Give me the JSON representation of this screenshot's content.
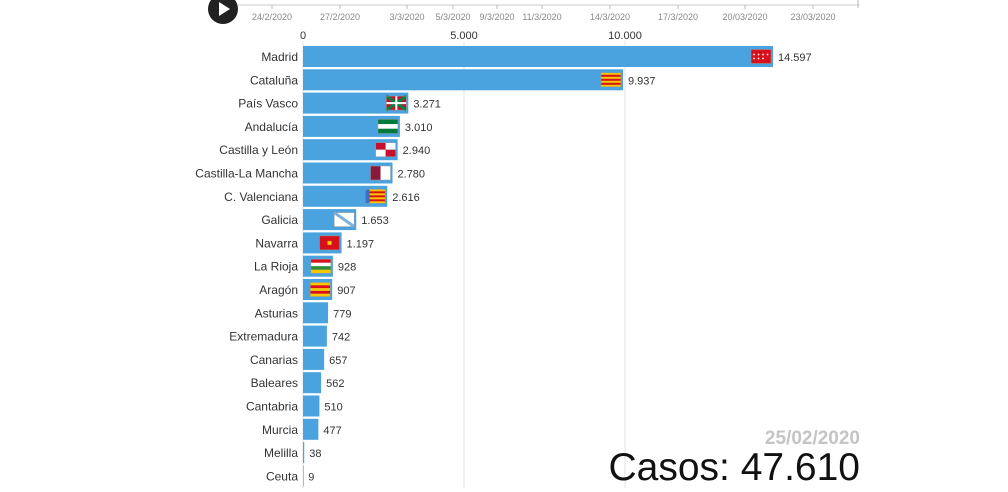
{
  "timeline": {
    "labels": [
      "24/2/2020",
      "27/2/2020",
      "3/3/2020",
      "5/3/2020",
      "9/3/2020",
      "11/3/2020",
      "14/3/2020",
      "17/3/2020",
      "20/03/2020",
      "23/03/2020"
    ]
  },
  "colors": {
    "bar": "#4aa3df",
    "grid": "#e3e3e3",
    "axis": "#bbbbbb"
  },
  "chart_data": {
    "type": "bar",
    "orientation": "horizontal",
    "xlim": [
      0,
      15500
    ],
    "x_ticks": [
      0,
      5000,
      10000
    ],
    "x_tick_labels": [
      "0",
      "5.000",
      "10.000"
    ],
    "categories": [
      "Madrid",
      "Cataluña",
      "País Vasco",
      "Andalucía",
      "Castilla y León",
      "Castilla-La Mancha",
      "C. Valenciana",
      "Galicia",
      "Navarra",
      "La Rioja",
      "Aragón",
      "Asturias",
      "Extremadura",
      "Canarias",
      "Baleares",
      "Cantabria",
      "Murcia",
      "Melilla",
      "Ceuta"
    ],
    "values": [
      14597,
      9937,
      3271,
      3010,
      2940,
      2780,
      2616,
      1653,
      1197,
      928,
      907,
      779,
      742,
      657,
      562,
      510,
      477,
      38,
      9
    ],
    "value_labels": [
      "14.597",
      "9.937",
      "3.271",
      "3.010",
      "2.940",
      "2.780",
      "2.616",
      "1.653",
      "1.197",
      "928",
      "907",
      "779",
      "742",
      "657",
      "562",
      "510",
      "477",
      "38",
      "9"
    ],
    "flags": [
      {
        "type": "stars",
        "colors": [
          "#d7111c",
          "#ffffff"
        ]
      },
      {
        "type": "hstripes",
        "colors": [
          "#f6c800",
          "#d7111c",
          "#f6c800",
          "#d7111c",
          "#f6c800",
          "#d7111c",
          "#f6c800"
        ]
      },
      {
        "type": "ikurrina",
        "colors": [
          "#c8102e",
          "#00843d",
          "#ffffff"
        ]
      },
      {
        "type": "hstripes",
        "colors": [
          "#007a3d",
          "#ffffff",
          "#007a3d"
        ]
      },
      {
        "type": "quarters",
        "colors": [
          "#c8102e",
          "#ffffff",
          "#ffffff",
          "#c8102e"
        ]
      },
      {
        "type": "vsplit",
        "colors": [
          "#8b1a3a",
          "#ffffff"
        ]
      },
      {
        "type": "valencia",
        "colors": [
          "#3a6fc4",
          "#f6c800",
          "#d7111c"
        ]
      },
      {
        "type": "diag",
        "colors": [
          "#ffffff",
          "#7db2e0"
        ]
      },
      {
        "type": "solid",
        "colors": [
          "#d7111c",
          "#f6c800"
        ]
      },
      {
        "type": "hstripes",
        "colors": [
          "#d7111c",
          "#ffffff",
          "#2e8b3a",
          "#f6c800"
        ]
      },
      {
        "type": "hstripes",
        "colors": [
          "#f6c800",
          "#d7111c",
          "#f6c800",
          "#d7111c",
          "#f6c800"
        ]
      },
      {
        "type": "cross",
        "colors": [
          "#0062b0",
          "#f6c800"
        ]
      },
      {
        "type": "hstripes",
        "colors": [
          "#007a3d",
          "#ffffff",
          "#000000"
        ]
      },
      {
        "type": "vstripes",
        "colors": [
          "#ffffff",
          "#0062b0",
          "#f6c800"
        ]
      },
      {
        "type": "hstripes",
        "colors": [
          "#d7111c",
          "#f6c800",
          "#d7111c",
          "#f6c800",
          "#d7111c"
        ]
      },
      {
        "type": "hstripes",
        "colors": [
          "#ffffff",
          "#d7111c"
        ]
      },
      {
        "type": "solid",
        "colors": [
          "#8b1a3a",
          "#f6c800"
        ]
      }
    ]
  },
  "current_date": "25/02/2020",
  "total": "Casos: 47.610"
}
